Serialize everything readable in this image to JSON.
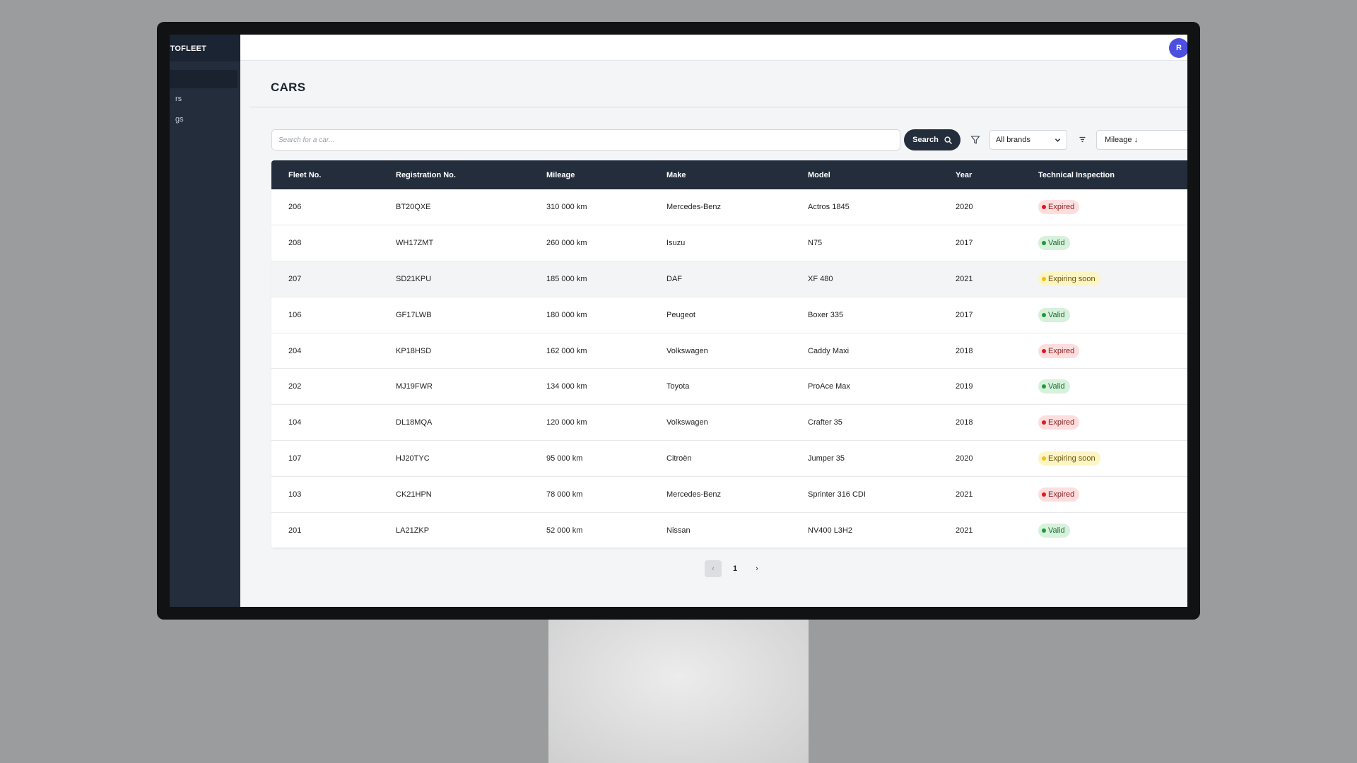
{
  "sidebar": {
    "brand": "UTOFLEET",
    "items": [
      {
        "label": ""
      },
      {
        "label": "rs"
      },
      {
        "label": "gs"
      }
    ]
  },
  "header": {
    "avatar_initial": "R"
  },
  "page": {
    "title": "CARS"
  },
  "search": {
    "placeholder": "Search for a car...",
    "button_label": "Search"
  },
  "filters": {
    "brand_selected": "All brands",
    "sort_selected": "Mileage ↓"
  },
  "table": {
    "columns": [
      "Fleet No.",
      "Registration No.",
      "Mileage",
      "Make",
      "Model",
      "Year",
      "Technical Inspection"
    ],
    "rows": [
      {
        "fleet": "206",
        "reg": "BT20QXE",
        "mileage": "310 000 km",
        "make": "Mercedes-Benz",
        "model": "Actros 1845",
        "year": "2020",
        "status": "Expired",
        "status_type": "expired"
      },
      {
        "fleet": "208",
        "reg": "WH17ZMT",
        "mileage": "260 000 km",
        "make": "Isuzu",
        "model": "N75",
        "year": "2017",
        "status": "Valid",
        "status_type": "valid"
      },
      {
        "fleet": "207",
        "reg": "SD21KPU",
        "mileage": "185 000 km",
        "make": "DAF",
        "model": "XF 480",
        "year": "2021",
        "status": "Expiring soon",
        "status_type": "soon"
      },
      {
        "fleet": "106",
        "reg": "GF17LWB",
        "mileage": "180 000 km",
        "make": "Peugeot",
        "model": "Boxer 335",
        "year": "2017",
        "status": "Valid",
        "status_type": "valid"
      },
      {
        "fleet": "204",
        "reg": "KP18HSD",
        "mileage": "162 000 km",
        "make": "Volkswagen",
        "model": "Caddy Maxi",
        "year": "2018",
        "status": "Expired",
        "status_type": "expired"
      },
      {
        "fleet": "202",
        "reg": "MJ19FWR",
        "mileage": "134 000 km",
        "make": "Toyota",
        "model": "ProAce Max",
        "year": "2019",
        "status": "Valid",
        "status_type": "valid"
      },
      {
        "fleet": "104",
        "reg": "DL18MQA",
        "mileage": "120 000 km",
        "make": "Volkswagen",
        "model": "Crafter 35",
        "year": "2018",
        "status": "Expired",
        "status_type": "expired"
      },
      {
        "fleet": "107",
        "reg": "HJ20TYC",
        "mileage": "95 000 km",
        "make": "Citroën",
        "model": "Jumper 35",
        "year": "2020",
        "status": "Expiring soon",
        "status_type": "soon"
      },
      {
        "fleet": "103",
        "reg": "CK21HPN",
        "mileage": "78 000 km",
        "make": "Mercedes-Benz",
        "model": "Sprinter 316 CDI",
        "year": "2021",
        "status": "Expired",
        "status_type": "expired"
      },
      {
        "fleet": "201",
        "reg": "LA21ZKP",
        "mileage": "52 000 km",
        "make": "Nissan",
        "model": "NV400 L3H2",
        "year": "2021",
        "status": "Valid",
        "status_type": "valid"
      }
    ]
  },
  "pagination": {
    "prev": "‹",
    "current": "1",
    "next": "›"
  },
  "colors": {
    "sidebar_bg": "#232d3c",
    "accent_avatar": "#4c4fe0",
    "expired": "#e0171b",
    "valid": "#1f9a3b",
    "expiring_soon": "#f2bf18"
  },
  "icons": {
    "search": "search-icon",
    "filter": "filter-icon",
    "sort": "sort-icon"
  }
}
